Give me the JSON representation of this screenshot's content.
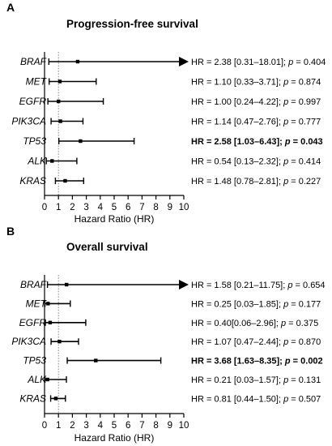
{
  "chart_data": [
    {
      "type": "forest",
      "panel": "A",
      "title": "Progression-free survival",
      "xlabel": "Hazard Ratio (HR)",
      "xlim": [
        0,
        10
      ],
      "xticks": [
        "0",
        "1",
        "2",
        "3",
        "4",
        "5",
        "6",
        "7",
        "8",
        "9",
        "10"
      ],
      "reference_line": 1,
      "rows": [
        {
          "gene": "BRAF",
          "hr": 2.38,
          "lower": 0.31,
          "upper": 18.01,
          "p": 0.404,
          "significant": false,
          "truncated": true,
          "label_main": "HR = 2.38 [0.31–18.01]; ",
          "label_p": "p",
          "label_tail": " = 0.404"
        },
        {
          "gene": "MET",
          "hr": 1.1,
          "lower": 0.33,
          "upper": 3.71,
          "p": 0.874,
          "significant": false,
          "truncated": false,
          "label_main": "HR = 1.10 [0.33–3.71]; ",
          "label_p": "p",
          "label_tail": " = 0.874"
        },
        {
          "gene": "EGFR",
          "hr": 1.0,
          "lower": 0.24,
          "upper": 4.22,
          "p": 0.997,
          "significant": false,
          "truncated": false,
          "label_main": "HR = 1.00 [0.24–4.22]; ",
          "label_p": "p",
          "label_tail": " = 0.997"
        },
        {
          "gene": "PIK3CA",
          "hr": 1.14,
          "lower": 0.47,
          "upper": 2.76,
          "p": 0.777,
          "significant": false,
          "truncated": false,
          "label_main": "HR = 1.14 [0.47–2.76]; ",
          "label_p": "p",
          "label_tail": " = 0.777"
        },
        {
          "gene": "TP53",
          "hr": 2.58,
          "lower": 1.03,
          "upper": 6.43,
          "p": 0.043,
          "significant": true,
          "truncated": false,
          "label_main": "HR = 2.58 [1.03–6.43]; ",
          "label_p": "p",
          "label_tail": " = 0.043"
        },
        {
          "gene": "ALK",
          "hr": 0.54,
          "lower": 0.13,
          "upper": 2.32,
          "p": 0.414,
          "significant": false,
          "truncated": false,
          "label_main": "HR = 0.54 [0.13–2.32]; ",
          "label_p": "p",
          "label_tail": " = 0.414"
        },
        {
          "gene": "KRAS",
          "hr": 1.48,
          "lower": 0.78,
          "upper": 2.81,
          "p": 0.227,
          "significant": false,
          "truncated": false,
          "label_main": "HR = 1.48 [0.78–2.81]; ",
          "label_p": "p",
          "label_tail": " = 0.227"
        }
      ]
    },
    {
      "type": "forest",
      "panel": "B",
      "title": "Overall survival",
      "xlabel": "Hazard Ratio (HR)",
      "xlim": [
        0,
        10
      ],
      "xticks": [
        "0",
        "1",
        "2",
        "3",
        "4",
        "5",
        "6",
        "7",
        "8",
        "9",
        "10"
      ],
      "reference_line": 1,
      "rows": [
        {
          "gene": "BRAF",
          "hr": 1.58,
          "lower": 0.21,
          "upper": 11.75,
          "p": 0.654,
          "significant": false,
          "truncated": true,
          "label_main": "HR = 1.58 [0.21–11.75]; ",
          "label_p": "p",
          "label_tail": " = 0.654"
        },
        {
          "gene": "MET",
          "hr": 0.25,
          "lower": 0.03,
          "upper": 1.85,
          "p": 0.177,
          "significant": false,
          "truncated": false,
          "label_main": "HR = 0.25 [0.03–1.85]; ",
          "label_p": "p",
          "label_tail": " = 0.177"
        },
        {
          "gene": "EGFR",
          "hr": 0.4,
          "lower": 0.06,
          "upper": 2.96,
          "p": 0.375,
          "significant": false,
          "truncated": false,
          "label_main": "HR = 0.40[0.06–2.96]; ",
          "label_p": "p",
          "label_tail": " = 0.375"
        },
        {
          "gene": "PIK3CA",
          "hr": 1.07,
          "lower": 0.47,
          "upper": 2.44,
          "p": 0.87,
          "significant": false,
          "truncated": false,
          "label_main": "HR = 1.07 [0.47–2.44]; ",
          "label_p": "p",
          "label_tail": " = 0.870"
        },
        {
          "gene": "TP53",
          "hr": 3.68,
          "lower": 1.63,
          "upper": 8.35,
          "p": 0.002,
          "significant": true,
          "truncated": false,
          "label_main": "HR = 3.68 [1.63–8.35]; ",
          "label_p": "p",
          "label_tail": " = 0.002"
        },
        {
          "gene": "ALK",
          "hr": 0.21,
          "lower": 0.03,
          "upper": 1.57,
          "p": 0.131,
          "significant": false,
          "truncated": false,
          "label_main": "HR = 0.21 [0.03–1.57]; ",
          "label_p": "p",
          "label_tail": " = 0.131"
        },
        {
          "gene": "KRAS",
          "hr": 0.81,
          "lower": 0.44,
          "upper": 1.5,
          "p": 0.507,
          "significant": false,
          "truncated": false,
          "label_main": "HR = 0.81 [0.44–1.50]; ",
          "label_p": "p",
          "label_tail": " = 0.507"
        }
      ]
    }
  ]
}
